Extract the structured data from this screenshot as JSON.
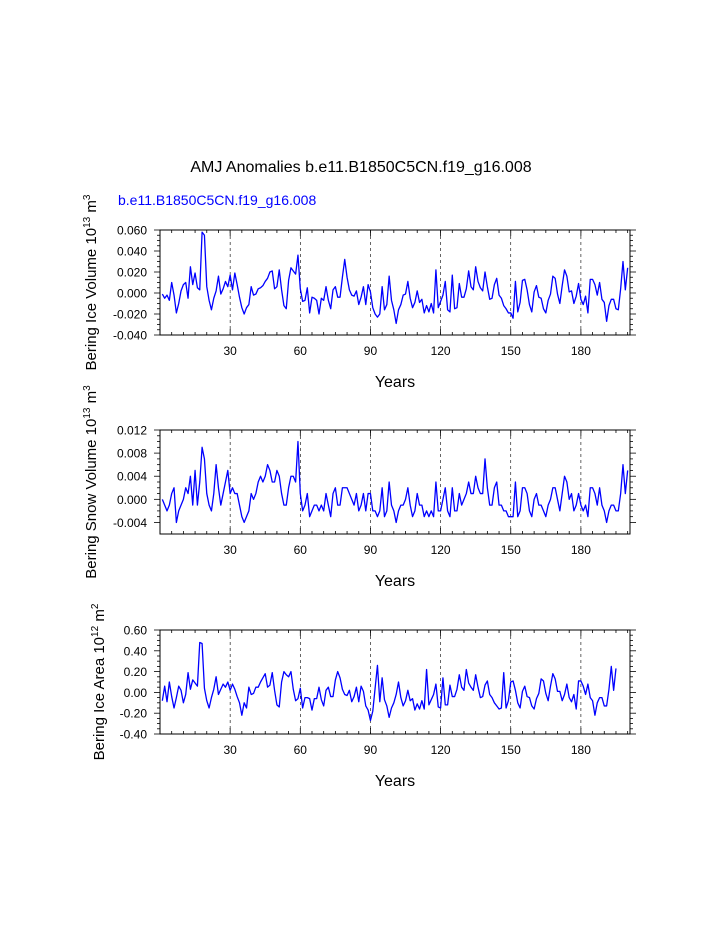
{
  "title": "AMJ Anomalies b.e11.B1850C5CN.f19_g16.008",
  "colors": {
    "series": "#0000ff",
    "axis": "#000000",
    "grid": "#000000"
  },
  "chart_data": [
    {
      "type": "line",
      "subtitle": "b.e11.B1850C5CN.f19_g16.008",
      "xlabel": "Years",
      "ylabel": "Bering Ice Volume 10^13 m^3",
      "ylabel_parts": {
        "base": "Bering Ice Volume 10",
        "exp1": "13",
        "mid": " m",
        "exp2": "3"
      },
      "xlim": [
        0,
        201
      ],
      "ylim": [
        -0.04,
        0.06
      ],
      "xticks": [
        30,
        60,
        90,
        120,
        150,
        180
      ],
      "xtick_labels": [
        "30",
        "60",
        "90",
        "120",
        "150",
        "180"
      ],
      "yticks": [
        -0.04,
        -0.02,
        0.0,
        0.02,
        0.04,
        0.06
      ],
      "ytick_labels": [
        "-0.040",
        "-0.020",
        "0.000",
        "0.020",
        "0.040",
        "0.060"
      ],
      "grid": "vertical dashed at x ticks",
      "series": [
        {
          "name": "b.e11.B1850C5CN.f19_g16.008",
          "values": [
            -0.001,
            -0.005,
            -0.002,
            -0.007,
            0.01,
            -0.002,
            -0.019,
            -0.01,
            0.002,
            0.008,
            0.01,
            -0.005,
            0.025,
            0.008,
            0.019,
            0.005,
            0.003,
            0.058,
            0.055,
            0.006,
            -0.007,
            -0.016,
            -0.005,
            0.002,
            0.016,
            -0.001,
            0.004,
            0.011,
            0.006,
            0.017,
            0.003,
            0.019,
            0.008,
            -0.004,
            -0.014,
            -0.02,
            -0.014,
            -0.011,
            0.006,
            -0.002,
            -0.001,
            0.004,
            0.005,
            0.007,
            0.011,
            0.014,
            0.02,
            0.021,
            0.004,
            0.006,
            0.022,
            0.003,
            -0.012,
            -0.015,
            0.012,
            0.024,
            0.021,
            0.018,
            0.036,
            0.004,
            -0.008,
            -0.007,
            0.005,
            -0.019,
            -0.004,
            -0.005,
            -0.007,
            -0.02,
            -0.005,
            -0.007,
            0.006,
            -0.007,
            -0.015,
            0.003,
            0.006,
            -0.004,
            -0.004,
            0.015,
            0.032,
            0.015,
            0.003,
            -0.002,
            -0.003,
            0.002,
            -0.011,
            -0.004,
            0.006,
            -0.011,
            0.008,
            0.001,
            -0.014,
            -0.02,
            -0.023,
            -0.02,
            0.006,
            -0.016,
            -0.011,
            0.016,
            -0.007,
            -0.016,
            -0.029,
            -0.016,
            -0.011,
            -0.002,
            -0.001,
            0.011,
            -0.005,
            -0.014,
            -0.009,
            0.002,
            -0.009,
            -0.006,
            -0.019,
            -0.012,
            -0.018,
            -0.01,
            -0.019,
            0.022,
            -0.014,
            -0.008,
            -0.002,
            0.011,
            -0.016,
            -0.018,
            0.017,
            -0.015,
            -0.014,
            0.009,
            -0.004,
            -0.004,
            0.004,
            0.021,
            0.006,
            0.003,
            0.025,
            0.011,
            0.005,
            0.002,
            0.02,
            0.006,
            -0.006,
            -0.005,
            0.008,
            0.014,
            -0.002,
            -0.005,
            -0.012,
            -0.015,
            -0.019,
            -0.019,
            -0.024,
            0.011,
            -0.018,
            -0.009,
            0.012,
            0.013,
            0.003,
            -0.011,
            -0.018,
            0.001,
            0.007,
            -0.004,
            -0.005,
            -0.015,
            -0.019,
            -0.007,
            -0.001,
            0.016,
            0.014,
            -0.001,
            -0.01,
            0.007,
            0.022,
            0.016,
            0.001,
            0.002,
            -0.01,
            -0.003,
            0.009,
            -0.006,
            -0.011,
            -0.003,
            -0.019,
            0.013,
            0.013,
            0.008,
            -0.002,
            0.01,
            -0.006,
            -0.009,
            -0.027,
            -0.012,
            -0.006,
            -0.006,
            -0.015,
            -0.016,
            0.004,
            0.03,
            0.003,
            0.024
          ]
        }
      ]
    },
    {
      "type": "line",
      "xlabel": "Years",
      "ylabel": "Bering Snow Volume 10^13 m^3",
      "ylabel_parts": {
        "base": "Bering Snow Volume 10",
        "exp1": "13",
        "mid": " m",
        "exp2": "3"
      },
      "xlim": [
        0,
        201
      ],
      "ylim": [
        -0.006,
        0.012
      ],
      "xticks": [
        30,
        60,
        90,
        120,
        150,
        180
      ],
      "xtick_labels": [
        "30",
        "60",
        "90",
        "120",
        "150",
        "180"
      ],
      "yticks": [
        -0.004,
        0.0,
        0.004,
        0.008,
        0.012
      ],
      "ytick_labels": [
        "-0.004",
        "0.000",
        "0.004",
        "0.008",
        "0.012"
      ],
      "grid": "vertical dashed at x ticks",
      "series": [
        {
          "name": "b.e11.B1850C5CN.f19_g16.008",
          "values": [
            0.0,
            -0.001,
            -0.002,
            -0.001,
            0.001,
            0.002,
            -0.004,
            -0.002,
            -0.001,
            0.0,
            0.002,
            0.001,
            0.004,
            -0.001,
            0.005,
            -0.001,
            0.003,
            0.009,
            0.007,
            0.001,
            -0.001,
            -0.002,
            0.001,
            0.006,
            0.002,
            -0.001,
            0.001,
            0.003,
            0.005,
            0.001,
            0.002,
            0.001,
            0.001,
            -0.001,
            -0.003,
            -0.004,
            -0.003,
            -0.002,
            0.001,
            0.0,
            0.001,
            0.003,
            0.004,
            0.003,
            0.004,
            0.006,
            0.005,
            0.003,
            0.003,
            0.005,
            0.004,
            0.001,
            -0.001,
            -0.001,
            0.002,
            0.004,
            0.004,
            0.003,
            0.01,
            0.001,
            -0.002,
            -0.001,
            0.001,
            -0.003,
            -0.002,
            -0.001,
            -0.001,
            -0.002,
            -0.001,
            -0.002,
            0.001,
            -0.001,
            -0.003,
            0.001,
            0.002,
            -0.001,
            -0.001,
            0.002,
            0.002,
            0.002,
            0.001,
            0.0,
            -0.001,
            0.001,
            -0.002,
            -0.001,
            0.001,
            -0.002,
            0.001,
            0.001,
            -0.002,
            -0.002,
            -0.003,
            -0.002,
            0.002,
            -0.003,
            -0.002,
            0.003,
            -0.001,
            -0.002,
            -0.004,
            -0.002,
            -0.001,
            -0.001,
            0.0,
            0.002,
            -0.001,
            -0.003,
            -0.002,
            0.001,
            -0.001,
            -0.001,
            -0.003,
            -0.002,
            -0.003,
            -0.002,
            -0.003,
            0.003,
            -0.002,
            -0.002,
            0.0,
            0.002,
            -0.002,
            -0.003,
            0.002,
            -0.002,
            -0.002,
            0.001,
            -0.001,
            0.0,
            0.001,
            0.003,
            0.001,
            0.001,
            0.004,
            0.002,
            0.001,
            0.001,
            0.007,
            0.002,
            -0.001,
            -0.001,
            0.002,
            0.003,
            -0.001,
            -0.001,
            -0.002,
            -0.002,
            -0.003,
            -0.003,
            -0.003,
            0.003,
            -0.003,
            -0.002,
            0.002,
            0.002,
            0.001,
            -0.002,
            -0.003,
            0.0,
            0.001,
            -0.001,
            -0.001,
            -0.002,
            -0.003,
            -0.001,
            0.0,
            0.002,
            0.002,
            0.0,
            -0.002,
            0.001,
            0.004,
            0.003,
            0.0,
            0.001,
            -0.002,
            -0.001,
            0.001,
            -0.001,
            -0.002,
            -0.001,
            -0.003,
            0.002,
            0.002,
            0.001,
            -0.001,
            0.002,
            -0.001,
            -0.002,
            -0.004,
            -0.002,
            -0.001,
            -0.001,
            -0.002,
            -0.002,
            0.001,
            0.006,
            0.001,
            0.005
          ]
        }
      ]
    },
    {
      "type": "line",
      "xlabel": "Years",
      "ylabel": "Bering Ice Area 10^12 m^2",
      "ylabel_parts": {
        "base": "Bering Ice Area 10",
        "exp1": "12",
        "mid": " m",
        "exp2": "2"
      },
      "xlim": [
        0,
        201
      ],
      "ylim": [
        -0.4,
        0.6
      ],
      "xticks": [
        30,
        60,
        90,
        120,
        150,
        180
      ],
      "xtick_labels": [
        "30",
        "60",
        "90",
        "120",
        "150",
        "180"
      ],
      "yticks": [
        -0.4,
        -0.2,
        0.0,
        0.2,
        0.4,
        0.6
      ],
      "ytick_labels": [
        "-0.40",
        "-0.20",
        "0.00",
        "0.20",
        "0.40",
        "0.60"
      ],
      "grid": "vertical dashed at x ticks",
      "series": [
        {
          "name": "b.e11.B1850C5CN.f19_g16.008",
          "values": [
            -0.08,
            0.06,
            -0.09,
            0.1,
            -0.04,
            -0.15,
            -0.05,
            0.06,
            0.02,
            -0.1,
            -0.02,
            0.19,
            0.03,
            0.12,
            0.09,
            0.06,
            0.48,
            0.47,
            0.04,
            -0.08,
            -0.15,
            -0.05,
            0.03,
            0.15,
            -0.02,
            0.03,
            0.08,
            0.05,
            0.1,
            0.02,
            0.08,
            0.03,
            -0.04,
            -0.1,
            -0.22,
            -0.1,
            -0.15,
            0.05,
            -0.02,
            -0.01,
            0.05,
            0.05,
            0.1,
            0.14,
            0.18,
            0.05,
            0.07,
            0.19,
            0.02,
            -0.12,
            -0.14,
            0.1,
            0.2,
            0.17,
            0.15,
            0.2,
            0.03,
            -0.08,
            -0.06,
            0.04,
            -0.15,
            -0.05,
            -0.05,
            -0.06,
            -0.17,
            -0.06,
            -0.06,
            0.05,
            -0.07,
            -0.13,
            0.02,
            0.05,
            -0.04,
            -0.04,
            0.12,
            0.2,
            0.14,
            0.03,
            -0.02,
            -0.03,
            0.02,
            -0.09,
            -0.04,
            0.05,
            -0.09,
            0.06,
            0.01,
            -0.13,
            -0.17,
            -0.27,
            -0.18,
            0.04,
            0.26,
            -0.09,
            0.14,
            -0.07,
            -0.13,
            -0.24,
            -0.15,
            -0.1,
            -0.02,
            0.1,
            -0.05,
            -0.13,
            -0.08,
            0.02,
            -0.08,
            -0.06,
            -0.17,
            -0.11,
            -0.16,
            -0.08,
            -0.16,
            0.22,
            -0.12,
            -0.07,
            -0.02,
            0.08,
            -0.14,
            -0.15,
            0.14,
            -0.12,
            -0.12,
            0.07,
            -0.04,
            -0.04,
            0.03,
            0.17,
            0.05,
            0.02,
            0.22,
            0.09,
            0.05,
            0.02,
            0.17,
            0.05,
            -0.05,
            -0.04,
            0.07,
            0.11,
            -0.02,
            -0.05,
            -0.1,
            -0.13,
            -0.16,
            -0.15,
            0.19,
            -0.15,
            -0.08,
            0.1,
            0.11,
            0.02,
            -0.1,
            -0.15,
            0.01,
            0.06,
            -0.04,
            -0.05,
            -0.13,
            -0.16,
            -0.06,
            -0.01,
            0.13,
            0.11,
            -0.01,
            -0.08,
            0.06,
            0.18,
            0.13,
            0.01,
            0.01,
            -0.08,
            -0.02,
            0.08,
            -0.05,
            -0.09,
            -0.02,
            -0.16,
            0.11,
            0.11,
            0.06,
            -0.02,
            0.08,
            -0.05,
            -0.08,
            -0.22,
            -0.1,
            -0.05,
            -0.05,
            -0.13,
            -0.13,
            0.03,
            0.25,
            0.02,
            0.23
          ]
        }
      ]
    }
  ]
}
